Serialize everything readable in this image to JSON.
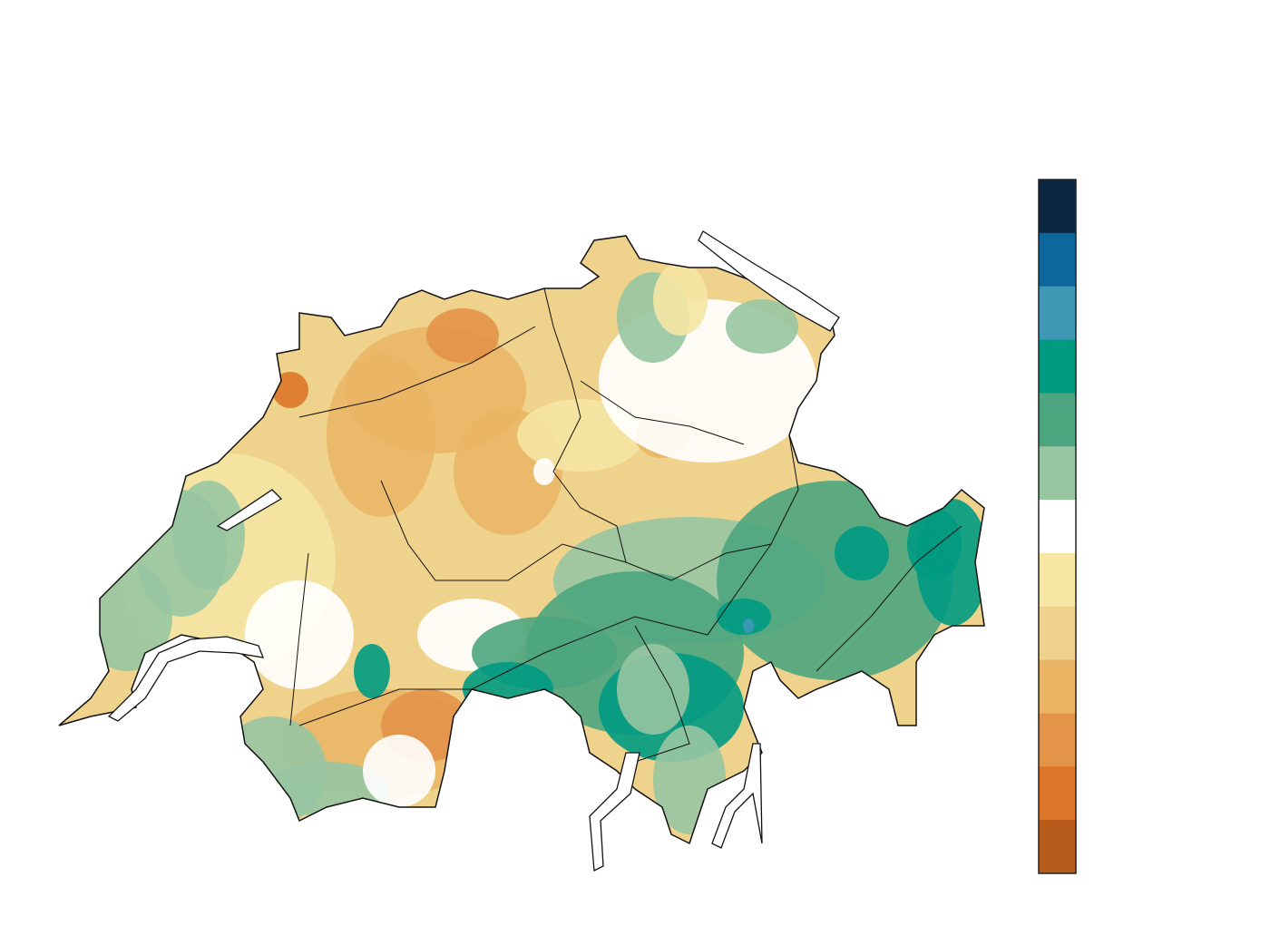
{
  "map": {
    "colorbar": {
      "colors": [
        "#0b2742",
        "#0d669c",
        "#3f98b6",
        "#009a82",
        "#4ca57e",
        "#98c5a2",
        "#ffffff",
        "#f5e6a3",
        "#efd28c",
        "#eab666",
        "#e39449",
        "#dc7528",
        "#b85c1b"
      ]
    }
  }
}
